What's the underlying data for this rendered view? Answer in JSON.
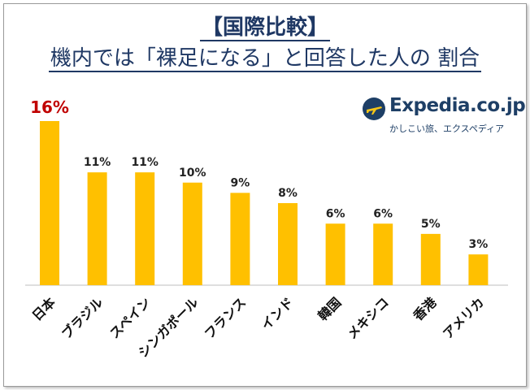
{
  "title_line1": "【国際比較】",
  "title_line2": "機内では「裸足になる」と回答した人の 割合",
  "logo": {
    "name": "Expedia.co.jp",
    "tagline": "かしこい旅、エクスペディア",
    "icon": "airplane-globe-icon"
  },
  "colors": {
    "bar": "#FFC000",
    "highlight_label": "#C00000",
    "label": "#222222",
    "title": "#1f3864"
  },
  "chart_data": {
    "type": "bar",
    "title": "",
    "xlabel": "",
    "ylabel": "",
    "categories": [
      "日本",
      "ブラジル",
      "スペイン",
      "シンガポール",
      "フランス",
      "インド",
      "韓国",
      "メキシコ",
      "香港",
      "アメリカ"
    ],
    "values": [
      16,
      11,
      11,
      10,
      9,
      8,
      6,
      6,
      5,
      3
    ],
    "value_labels": [
      "16%",
      "11%",
      "11%",
      "10%",
      "9%",
      "8%",
      "6%",
      "6%",
      "5%",
      "3%"
    ],
    "highlight_index": 0,
    "ylim": [
      0,
      16
    ],
    "grid": false,
    "legend": "none"
  }
}
